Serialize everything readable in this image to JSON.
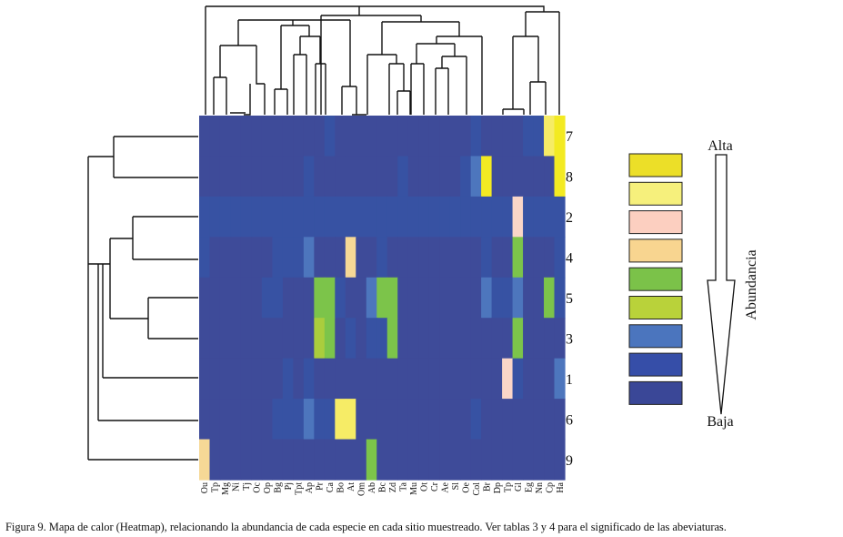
{
  "chart_data": {
    "type": "heatmap",
    "title": "",
    "columns": [
      "Ou",
      "Tp",
      "Mg",
      "Ni",
      "Tj",
      "Oc",
      "Op",
      "Bg",
      "Pj",
      "Tpt",
      "Ap",
      "Pr",
      "Ca",
      "Bo",
      "At",
      "Om",
      "Ab",
      "Bc",
      "Zd",
      "Ta",
      "Mu",
      "Ot",
      "Cr",
      "Ae",
      "Sl",
      "Oe",
      "Col",
      "Br",
      "Dp",
      "Tp",
      "Gl",
      "Eg",
      "Nn",
      "Cp",
      "Ha"
    ],
    "rows": [
      "7",
      "8",
      "2",
      "4",
      "5",
      "3",
      "1",
      "6",
      "9"
    ],
    "levels": [
      "Alta",
      "",
      "",
      "",
      "",
      "",
      "",
      "",
      "Baja"
    ],
    "values": [
      [
        0,
        0,
        0,
        0,
        0,
        0,
        0,
        0,
        0,
        0,
        0,
        0,
        1,
        0,
        0,
        0,
        0,
        0,
        0,
        0,
        0,
        0,
        0,
        0,
        0,
        0,
        1,
        0,
        0,
        0,
        0,
        1,
        1,
        7,
        8
      ],
      [
        0,
        0,
        0,
        0,
        0,
        0,
        0,
        0,
        0,
        0,
        1,
        0,
        0,
        0,
        0,
        0,
        0,
        0,
        0,
        1,
        0,
        0,
        0,
        0,
        0,
        1,
        2,
        8,
        0,
        0,
        0,
        0,
        0,
        0,
        8
      ],
      [
        1,
        1,
        1,
        1,
        1,
        1,
        1,
        1,
        1,
        1,
        1,
        1,
        1,
        1,
        1,
        1,
        1,
        1,
        1,
        1,
        1,
        1,
        1,
        1,
        1,
        1,
        1,
        1,
        1,
        1,
        6,
        1,
        1,
        1,
        1
      ],
      [
        1,
        0,
        0,
        0,
        0,
        0,
        0,
        1,
        1,
        1,
        2,
        0,
        0,
        0,
        5,
        0,
        0,
        1,
        0,
        0,
        0,
        0,
        0,
        0,
        0,
        0,
        0,
        1,
        0,
        0,
        4,
        0,
        0,
        0,
        1
      ],
      [
        0,
        0,
        0,
        0,
        0,
        0,
        1,
        1,
        0,
        0,
        0,
        4,
        4,
        1,
        0,
        0,
        2,
        4,
        4,
        0,
        0,
        0,
        0,
        0,
        0,
        0,
        0,
        2,
        1,
        1,
        2,
        0,
        0,
        4,
        1
      ],
      [
        0,
        0,
        0,
        0,
        0,
        0,
        0,
        0,
        0,
        0,
        0,
        3,
        4,
        0,
        1,
        0,
        1,
        1,
        4,
        0,
        0,
        0,
        0,
        0,
        0,
        0,
        0,
        0,
        0,
        0,
        4,
        0,
        0,
        0,
        0
      ],
      [
        0,
        0,
        0,
        0,
        0,
        0,
        0,
        0,
        1,
        0,
        1,
        0,
        0,
        0,
        0,
        0,
        0,
        0,
        0,
        0,
        0,
        0,
        0,
        0,
        0,
        0,
        0,
        0,
        0,
        6,
        1,
        0,
        0,
        0,
        2
      ],
      [
        0,
        0,
        0,
        0,
        0,
        0,
        0,
        1,
        1,
        1,
        2,
        1,
        1,
        7,
        7,
        0,
        0,
        0,
        0,
        0,
        0,
        0,
        0,
        0,
        0,
        0,
        1,
        0,
        0,
        0,
        0,
        0,
        0,
        0,
        0
      ],
      [
        5,
        0,
        0,
        0,
        0,
        0,
        0,
        0,
        0,
        0,
        0,
        0,
        0,
        0,
        0,
        0,
        4,
        0,
        0,
        0,
        0,
        0,
        0,
        0,
        0,
        0,
        0,
        0,
        0,
        0,
        0,
        0,
        0,
        0,
        0
      ]
    ],
    "legend_colors": [
      "#ecdf28",
      "#f6f07c",
      "#fccfc0",
      "#f8d590",
      "#7bc249",
      "#b9d23a",
      "#4b75be",
      "#364ea8",
      "#3a4797"
    ],
    "value_colors": [
      "#3e4b99",
      "#3752a3",
      "#4d76bd",
      "#aacd3d",
      "#7cc44a",
      "#f6d896",
      "#fad6c8",
      "#f6ec66",
      "#f3ea22"
    ],
    "legend_title": "Abundancia",
    "legend_high": "Alta",
    "legend_low": "Baja"
  },
  "caption": "Figura 9. Mapa de calor (Heatmap), relacionando la abundancia de cada especie en cada sitio muestreado. Ver tablas 3 y 4 para el significado de las abeviaturas."
}
